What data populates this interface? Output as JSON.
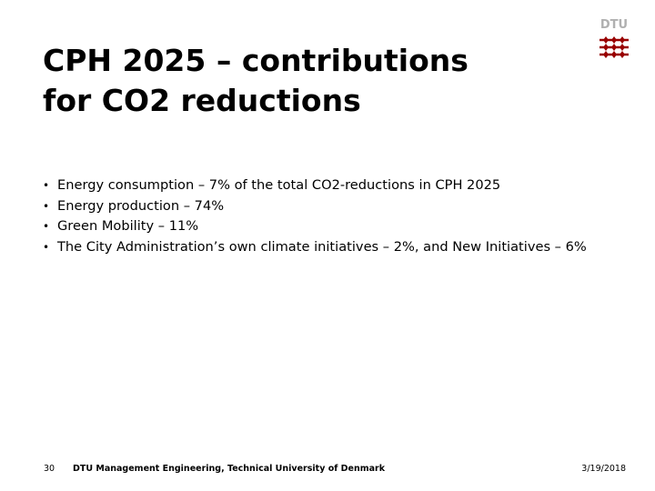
{
  "slide": {
    "title_line1": "CPH 2025 – contributions",
    "title_line2": "for CO2 reductions",
    "bullets": [
      "Energy consumption – 7% of the total CO2-reductions in CPH 2025",
      "Energy production – 74%",
      "Green Mobility – 11%",
      "The City Administration’s own climate initiatives – 2%, and New Initiatives – 6%"
    ]
  },
  "logo": {
    "text": "DTU",
    "text_color": "#b0b0b0",
    "mark_color": "#990000",
    "icon": "dtu-logo-icon"
  },
  "footer": {
    "page_number": "30",
    "organization": "DTU Management Engineering, Technical University of Denmark",
    "date": "3/19/2018"
  }
}
